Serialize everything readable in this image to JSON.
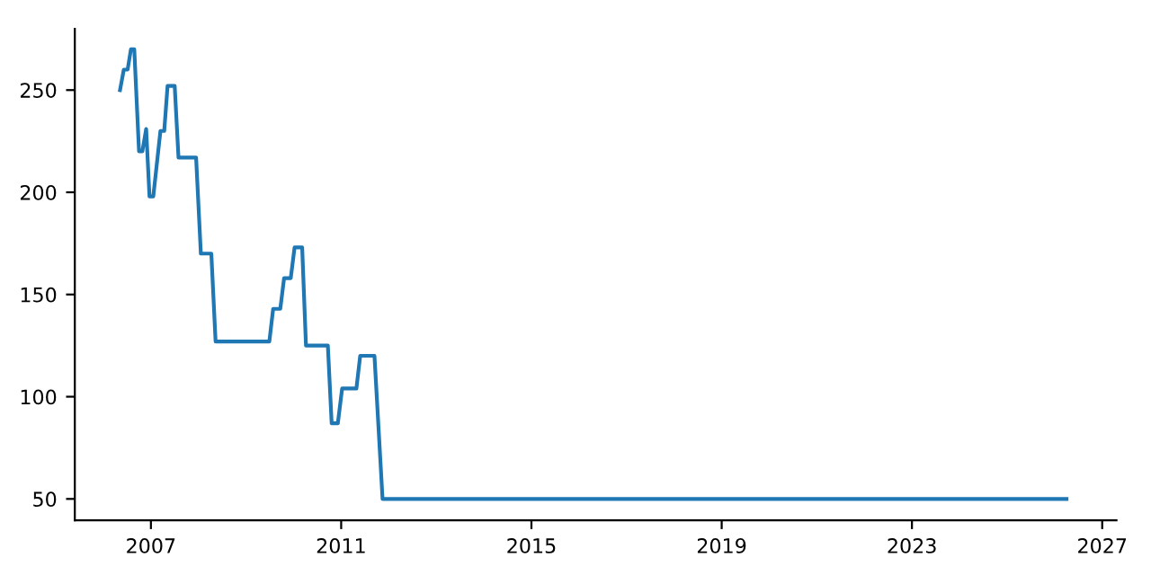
{
  "chart_data": {
    "type": "line",
    "x": [
      2006.35,
      2006.43,
      2006.51,
      2006.58,
      2006.65,
      2006.75,
      2006.82,
      2006.9,
      2006.97,
      2007.05,
      2007.2,
      2007.28,
      2007.35,
      2007.5,
      2007.58,
      2007.95,
      2008.05,
      2008.27,
      2008.36,
      2009.49,
      2009.57,
      2009.72,
      2009.8,
      2009.94,
      2010.02,
      2010.18,
      2010.26,
      2010.72,
      2010.8,
      2010.93,
      2011.02,
      2011.32,
      2011.4,
      2011.7,
      2011.87,
      2026.25
    ],
    "series": [
      {
        "color": "#1f77b4",
        "values": [
          250,
          260,
          260,
          270,
          270,
          220,
          220,
          231,
          198,
          198,
          230,
          230,
          252,
          252,
          217,
          217,
          170,
          170,
          127,
          127,
          143,
          143,
          158,
          158,
          173,
          173,
          125,
          125,
          87,
          87,
          104,
          104,
          120,
          120,
          50,
          50
        ]
      }
    ],
    "xlim": [
      2005.4,
      2027.3
    ],
    "xticks": [
      2007,
      2011,
      2015,
      2019,
      2023,
      2027
    ],
    "ylim": [
      39.5,
      280
    ],
    "yticks": [
      50,
      100,
      150,
      200,
      250
    ],
    "grid": false,
    "marker": "none",
    "line_style": "solid"
  }
}
